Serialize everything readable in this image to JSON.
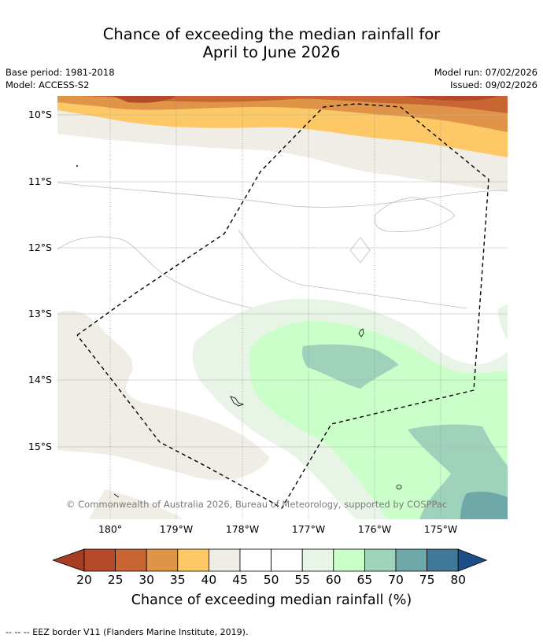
{
  "title_line1": "Chance of exceeding the median rainfall for",
  "title_line2": "April to June 2026",
  "base_period": "Base period: 1981-2018",
  "model": "Model: ACCESS-S2",
  "model_run": "Model run: 07/02/2026",
  "issued": "Issued: 09/02/2026",
  "lat_labels": [
    "10°S",
    "11°S",
    "12°S",
    "13°S",
    "14°S",
    "15°S"
  ],
  "lon_labels": [
    "180°",
    "179°W",
    "178°W",
    "177°W",
    "176°W",
    "175°W"
  ],
  "copyright": "© Commonwealth of Australia 2026, Bureau of Meteorology, supported by COSPPac",
  "colorbar": {
    "ticks": [
      "20",
      "25",
      "30",
      "35",
      "40",
      "45",
      "50",
      "55",
      "60",
      "65",
      "70",
      "75",
      "80"
    ],
    "colors": [
      "#a63c22",
      "#b44a2a",
      "#c96433",
      "#e09448",
      "#fdc966",
      "#f0ece6",
      "#ffffff",
      "#ffffff",
      "#e8f4e6",
      "#caffca",
      "#9ed2bb",
      "#6fa8a8",
      "#3f7898",
      "#1c4e88"
    ],
    "label": "Chance of exceeding median rainfall (%)"
  },
  "footer": "-- -- -- EEZ border V11 (Flanders Marine Institute, 2019)."
}
